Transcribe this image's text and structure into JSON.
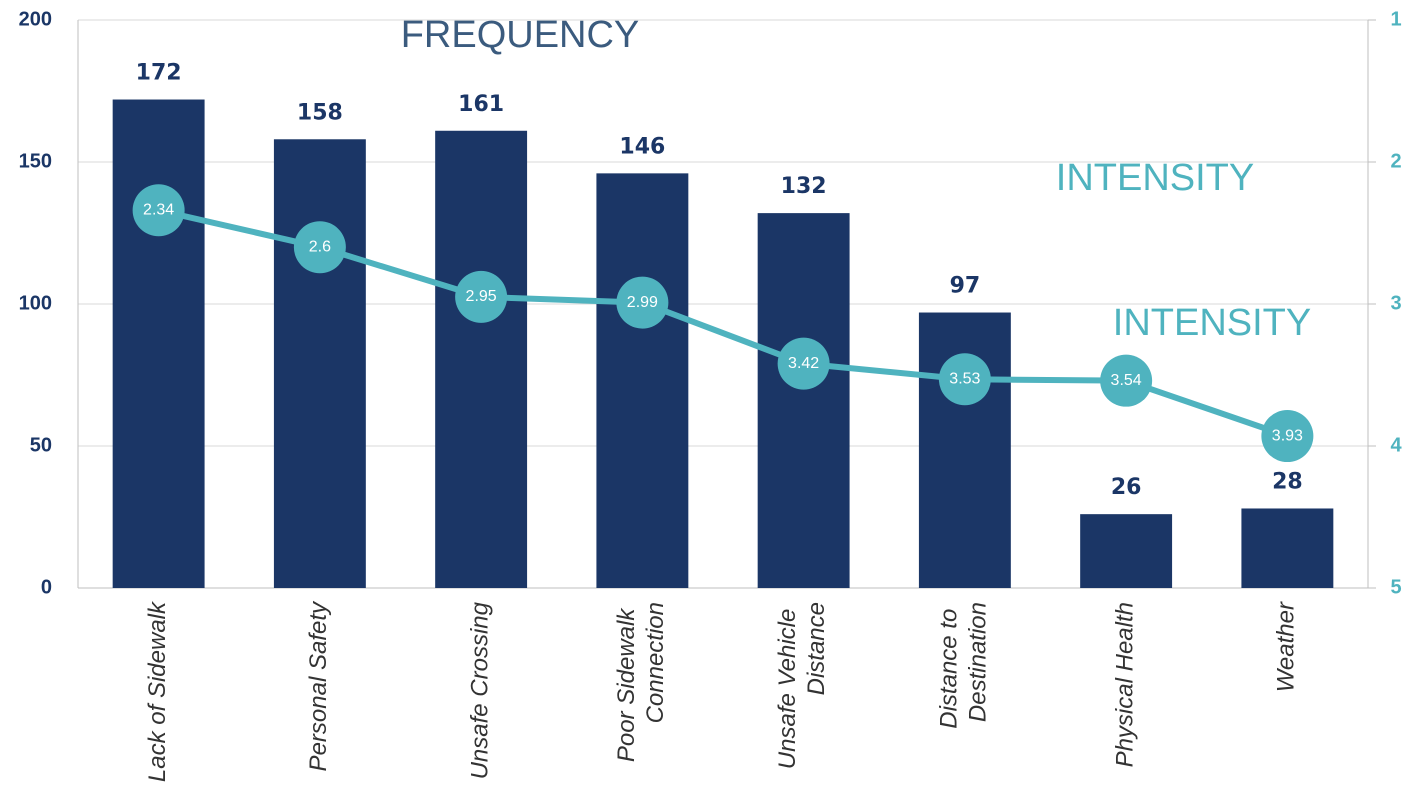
{
  "chart_data": {
    "type": "bar_line",
    "categories": [
      "Lack of Sidewalk",
      "Personal Safety",
      "Unsafe Crossing",
      "Poor Sidewalk Connection",
      "Unsafe Vehicle Distance",
      "Distance to Destination",
      "Physical Health",
      "Weather"
    ],
    "series": [
      {
        "name": "FREQUENCY",
        "type": "bar",
        "color": "#1b3666",
        "values": [
          172,
          158,
          161,
          146,
          132,
          97,
          26,
          28
        ]
      },
      {
        "name": "INTENSITY",
        "type": "line",
        "axis": "y2",
        "color": "#4fb3bf",
        "values": [
          2.34,
          2.6,
          2.95,
          2.99,
          3.42,
          3.53,
          3.54,
          3.93
        ]
      }
    ],
    "annotations": [
      "INTENSITY"
    ],
    "ylim": [
      0,
      200
    ],
    "yticks": [
      0,
      50,
      100,
      150,
      200
    ],
    "y2lim": [
      1,
      5
    ],
    "y2ticks": [
      1,
      2,
      3,
      4,
      5
    ],
    "y2_inverted": true,
    "grid": true
  }
}
